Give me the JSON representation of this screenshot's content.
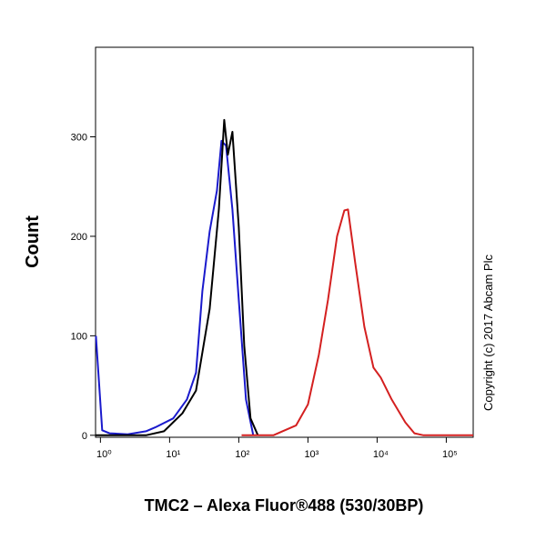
{
  "chart_data": {
    "type": "line",
    "x_label": "TMC2 – Alexa Fluor®488 (530/30BP)",
    "y_label": "Count",
    "annotation": "Copyright (c) 2017 Abcam Plc",
    "xscale": "log",
    "xlim": [
      0.85,
      245000
    ],
    "ylim": [
      -2,
      390
    ],
    "xticks": [
      {
        "value": 1,
        "label": "10⁰"
      },
      {
        "value": 10,
        "label": "10¹"
      },
      {
        "value": 100,
        "label": "10²"
      },
      {
        "value": 1000,
        "label": "10³"
      },
      {
        "value": 10000,
        "label": "10⁴"
      },
      {
        "value": 100000,
        "label": "10⁵"
      }
    ],
    "yticks": [
      0,
      100,
      200,
      300
    ],
    "series": [
      {
        "color": "#1a1acc",
        "x": [
          0.86,
          1.06,
          1.35,
          2.48,
          4.55,
          6.2,
          11.3,
          17.8,
          24.1,
          29.8,
          37.9,
          48.3,
          56.2,
          65.5,
          80.9,
          100,
          127,
          162
        ],
        "values": [
          100,
          5,
          2,
          1,
          4,
          8,
          17,
          36,
          63,
          145,
          205,
          246,
          296,
          291,
          227,
          136,
          36,
          0
        ]
      },
      {
        "color": "#000000",
        "x": [
          0.86,
          4.55,
          8.3,
          15.3,
          24.1,
          37.9,
          51.5,
          61.6,
          69.5,
          80.9,
          100,
          120,
          148,
          189
        ],
        "values": [
          0,
          0,
          4,
          22,
          45,
          127,
          227,
          317,
          282,
          305,
          209,
          90,
          17,
          0
        ]
      },
      {
        "color": "#d42020",
        "x": [
          110,
          316,
          428,
          675,
          1000,
          1438,
          1946,
          2635,
          3360,
          3793,
          4832,
          6544,
          8860,
          11300,
          16240,
          25600,
          34600,
          46900,
          245000
        ],
        "values": [
          0,
          0,
          4,
          10,
          31,
          81,
          136,
          200,
          226,
          227,
          173,
          109,
          68,
          58,
          36,
          13,
          2,
          0,
          0
        ]
      }
    ]
  }
}
